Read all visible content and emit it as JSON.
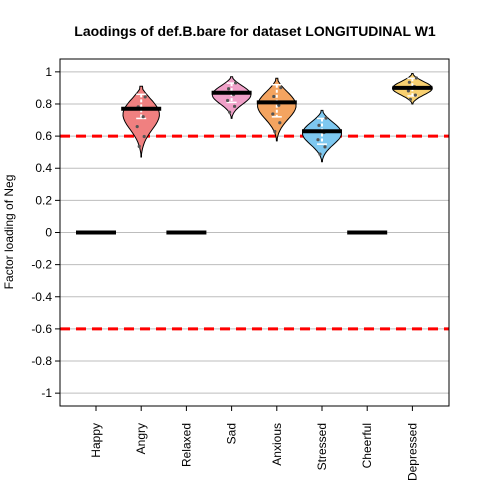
{
  "chart_data": {
    "type": "violin",
    "title": "Laodings of def.B.bare for dataset LONGITUDINAL W1",
    "xlabel": "",
    "ylabel": "Factor loading of Neg",
    "ylim": [
      -1.08,
      1.08
    ],
    "yticks": [
      1,
      0.8,
      0.6,
      0.4,
      0.2,
      0,
      -0.2,
      -0.4,
      -0.6,
      -0.8,
      -1
    ],
    "ytick_labels": [
      "1",
      "0.8",
      "0.6",
      "0.4",
      "0.2",
      "0",
      "-0.2",
      "-0.4",
      "-0.6",
      "-0.8",
      "-1"
    ],
    "grid": true,
    "threshold_lines": [
      0.6,
      -0.6
    ],
    "threshold_color": "#ff0000",
    "categories": [
      "Happy",
      "Angry",
      "Relaxed",
      "Sad",
      "Anxious",
      "Stressed",
      "Cheerful",
      "Depressed"
    ],
    "medians": [
      0,
      0.77,
      0,
      0.87,
      0.81,
      0.63,
      0,
      0.9
    ],
    "distributions": [
      null,
      {
        "color": "#f08080",
        "min": 0.47,
        "max": 0.91,
        "q1": 0.71,
        "q3": 0.86
      },
      null,
      {
        "color": "#f0a0c8",
        "min": 0.71,
        "max": 0.97,
        "q1": 0.81,
        "q3": 0.93
      },
      {
        "color": "#f4a460",
        "min": 0.57,
        "max": 0.96,
        "q1": 0.72,
        "q3": 0.92
      },
      {
        "color": "#7ec8f0",
        "min": 0.44,
        "max": 0.76,
        "q1": 0.55,
        "q3": 0.71
      },
      null,
      {
        "color": "#f8d070",
        "min": 0.8,
        "max": 0.99,
        "q1": 0.85,
        "q3": 0.96
      }
    ]
  }
}
